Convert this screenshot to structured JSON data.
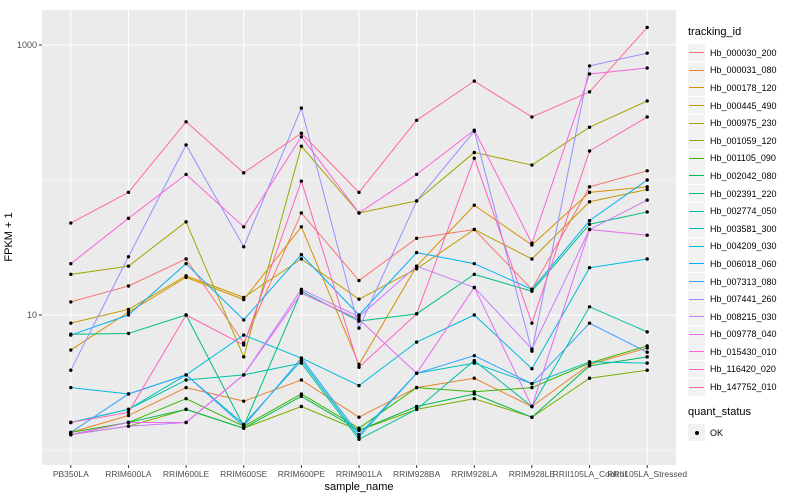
{
  "chart_data": {
    "type": "line",
    "title": "",
    "xlabel": "sample_name",
    "ylabel": "FPKM + 1",
    "y_scale": "log10",
    "ylim": [
      1,
      1400
    ],
    "grid": true,
    "legend_position": "right",
    "yticks": [
      {
        "value": 10,
        "label": "10"
      },
      {
        "value": 1000,
        "label": "1000"
      }
    ],
    "y_minor_breaks": [
      1,
      100
    ],
    "categories": [
      "PB350LA",
      "RRIM600LA",
      "RRIM600LE",
      "RRIM600SE",
      "RRIM600PE",
      "RRIM901LA",
      "RRIM928BA",
      "RRIM928LA",
      "RRIM928LE",
      "RRII105LA_Control",
      "RRII105LA_Stressed"
    ],
    "series": [
      {
        "name": "Hb_000030_200",
        "color": "#F8766D",
        "values": [
          12.5,
          16.4,
          26,
          6.2,
          57,
          18,
          37,
          43,
          15.5,
          89,
          117
        ]
      },
      {
        "name": "Hb_000031_080",
        "color": "#EA8331",
        "values": [
          1.35,
          1.8,
          2.9,
          2.3,
          3.3,
          1.75,
          2.9,
          3.4,
          2.1,
          4.3,
          5.7
        ]
      },
      {
        "name": "Hb_000178_120",
        "color": "#D89000",
        "values": [
          5.5,
          10.5,
          19,
          13,
          45,
          4.3,
          23,
          65,
          33,
          81,
          89
        ]
      },
      {
        "name": "Hb_000445_490",
        "color": "#C09B00",
        "values": [
          8.7,
          11,
          19.5,
          13.5,
          26,
          13.1,
          22,
          43,
          26,
          69,
          85
        ]
      },
      {
        "name": "Hb_000975_230",
        "color": "#A3A500",
        "values": [
          20,
          23,
          49,
          4.9,
          178,
          57,
          70,
          160,
          129,
          246,
          385
        ]
      },
      {
        "name": "Hb_001059_120",
        "color": "#7CAE00",
        "values": [
          1.3,
          1.5,
          2.0,
          1.45,
          2.1,
          1.4,
          2.0,
          2.4,
          1.75,
          3.4,
          3.9
        ]
      },
      {
        "name": "Hb_001105_090",
        "color": "#39B600",
        "values": [
          1.35,
          1.6,
          2.4,
          1.5,
          2.6,
          1.45,
          2.9,
          2.7,
          2.9,
          4.4,
          5.9
        ]
      },
      {
        "name": "Hb_002042_080",
        "color": "#00BB4E",
        "values": [
          1.3,
          1.6,
          2.0,
          1.45,
          2.5,
          1.4,
          2.1,
          2.6,
          1.75,
          4.2,
          4.9
        ]
      },
      {
        "name": "Hb_002391_220",
        "color": "#00BF7D",
        "values": [
          7.2,
          7.3,
          10,
          1.5,
          15,
          9,
          10.2,
          20,
          15,
          47,
          58
        ]
      },
      {
        "name": "Hb_002774_050",
        "color": "#00C1A3",
        "values": [
          1.6,
          2.0,
          3.3,
          3.6,
          4.4,
          1.2,
          2.0,
          4.6,
          2.1,
          11.5,
          7.5
        ]
      },
      {
        "name": "Hb_003581_300",
        "color": "#00BFC4",
        "values": [
          1.6,
          2.0,
          3.6,
          1.55,
          4.6,
          1.25,
          3.7,
          4.4,
          3.1,
          4.5,
          4.4
        ]
      },
      {
        "name": "Hb_004209_030",
        "color": "#00BAE0",
        "values": [
          2.9,
          2.6,
          3.6,
          7.1,
          4.8,
          3.0,
          6.3,
          10,
          4.0,
          22.4,
          26
        ]
      },
      {
        "name": "Hb_006018_060",
        "color": "#00B0F6",
        "values": [
          7.1,
          10,
          24,
          9.2,
          28,
          10,
          29,
          24,
          15.5,
          50,
          100
        ]
      },
      {
        "name": "Hb_007313_080",
        "color": "#35A2FF",
        "values": [
          1.35,
          2.6,
          3.6,
          1.5,
          4.8,
          1.3,
          3.7,
          5.0,
          3.1,
          8.7,
          5.3
        ]
      },
      {
        "name": "Hb_007441_260",
        "color": "#9590FF",
        "values": [
          3.9,
          27,
          182,
          32,
          341,
          8,
          70,
          230,
          5.4,
          700,
          870
        ]
      },
      {
        "name": "Hb_008215_030",
        "color": "#C77CFF",
        "values": [
          1.3,
          1.5,
          1.6,
          3.6,
          15.5,
          9.7,
          23,
          16,
          5.6,
          43,
          71
        ]
      },
      {
        "name": "Hb_009778_040",
        "color": "#E76BF3",
        "values": [
          1.3,
          1.6,
          1.6,
          3.6,
          14.5,
          9.3,
          3.7,
          16,
          2.1,
          43,
          39
        ]
      },
      {
        "name": "Hb_015430_010",
        "color": "#FA62DB",
        "values": [
          24,
          52,
          110,
          45,
          209,
          57,
          110,
          234,
          34,
          610,
          675
        ]
      },
      {
        "name": "Hb_116420_020",
        "color": "#FF62BC",
        "values": [
          1.6,
          1.9,
          10,
          6.0,
          98,
          4.1,
          10.2,
          145,
          8.7,
          164,
          293
        ]
      },
      {
        "name": "Hb_147752_010",
        "color": "#FF6A98",
        "values": [
          48,
          81,
          270,
          113,
          222,
          81,
          277,
          540,
          293,
          450,
          1350
        ]
      }
    ]
  },
  "legend": {
    "tracking_title": "tracking_id",
    "quant_title": "quant_status",
    "quant_items": [
      "OK"
    ]
  },
  "colors": {
    "panel_bg": "#EBEBEB",
    "grid_major": "#FFFFFF",
    "grid_minor": "#F7F7F7",
    "tick_text": "#4D4D4D",
    "tick_mark": "#333333",
    "point": "#000000",
    "legend_key_bg": "#F2F2F2"
  }
}
